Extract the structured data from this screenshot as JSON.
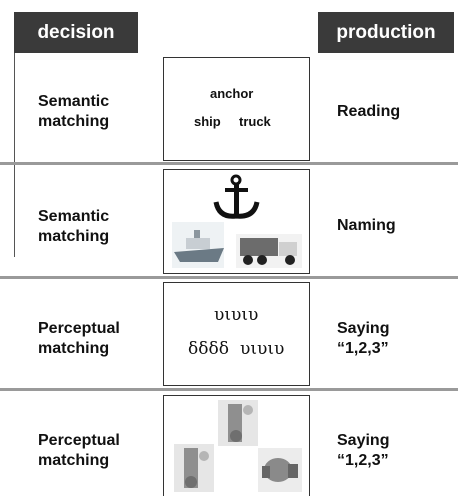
{
  "header": {
    "left": "decision",
    "right": "production"
  },
  "rows": [
    {
      "decision": "Semantic matching",
      "stimulus": [
        "anchor",
        "ship",
        "truck"
      ],
      "production": "Reading"
    },
    {
      "decision": "Semantic matching",
      "production": "Naming"
    },
    {
      "decision": "Perceptual matching",
      "stimulus": [
        "υιυιυ",
        "δδδδ",
        "υιυιυ"
      ],
      "production": "Saying “1,2,3”"
    },
    {
      "decision": "Perceptual matching",
      "production": "Saying “1,2,3”"
    }
  ]
}
